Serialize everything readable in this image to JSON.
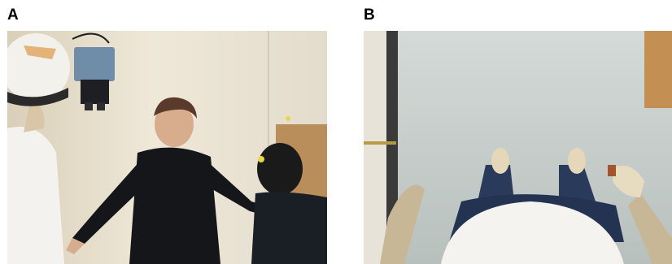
{
  "figure": {
    "panels": [
      {
        "label": "A",
        "description_icon": "photo-experiment-room"
      },
      {
        "label": "B",
        "description_icon": "photo-first-person-view"
      }
    ],
    "colors": {
      "wall": "#ece4d2",
      "floor": "#c9d0cd",
      "helmet": "#f2f0ea",
      "shirt_dark": "#151719",
      "box": "#c79a63"
    }
  }
}
